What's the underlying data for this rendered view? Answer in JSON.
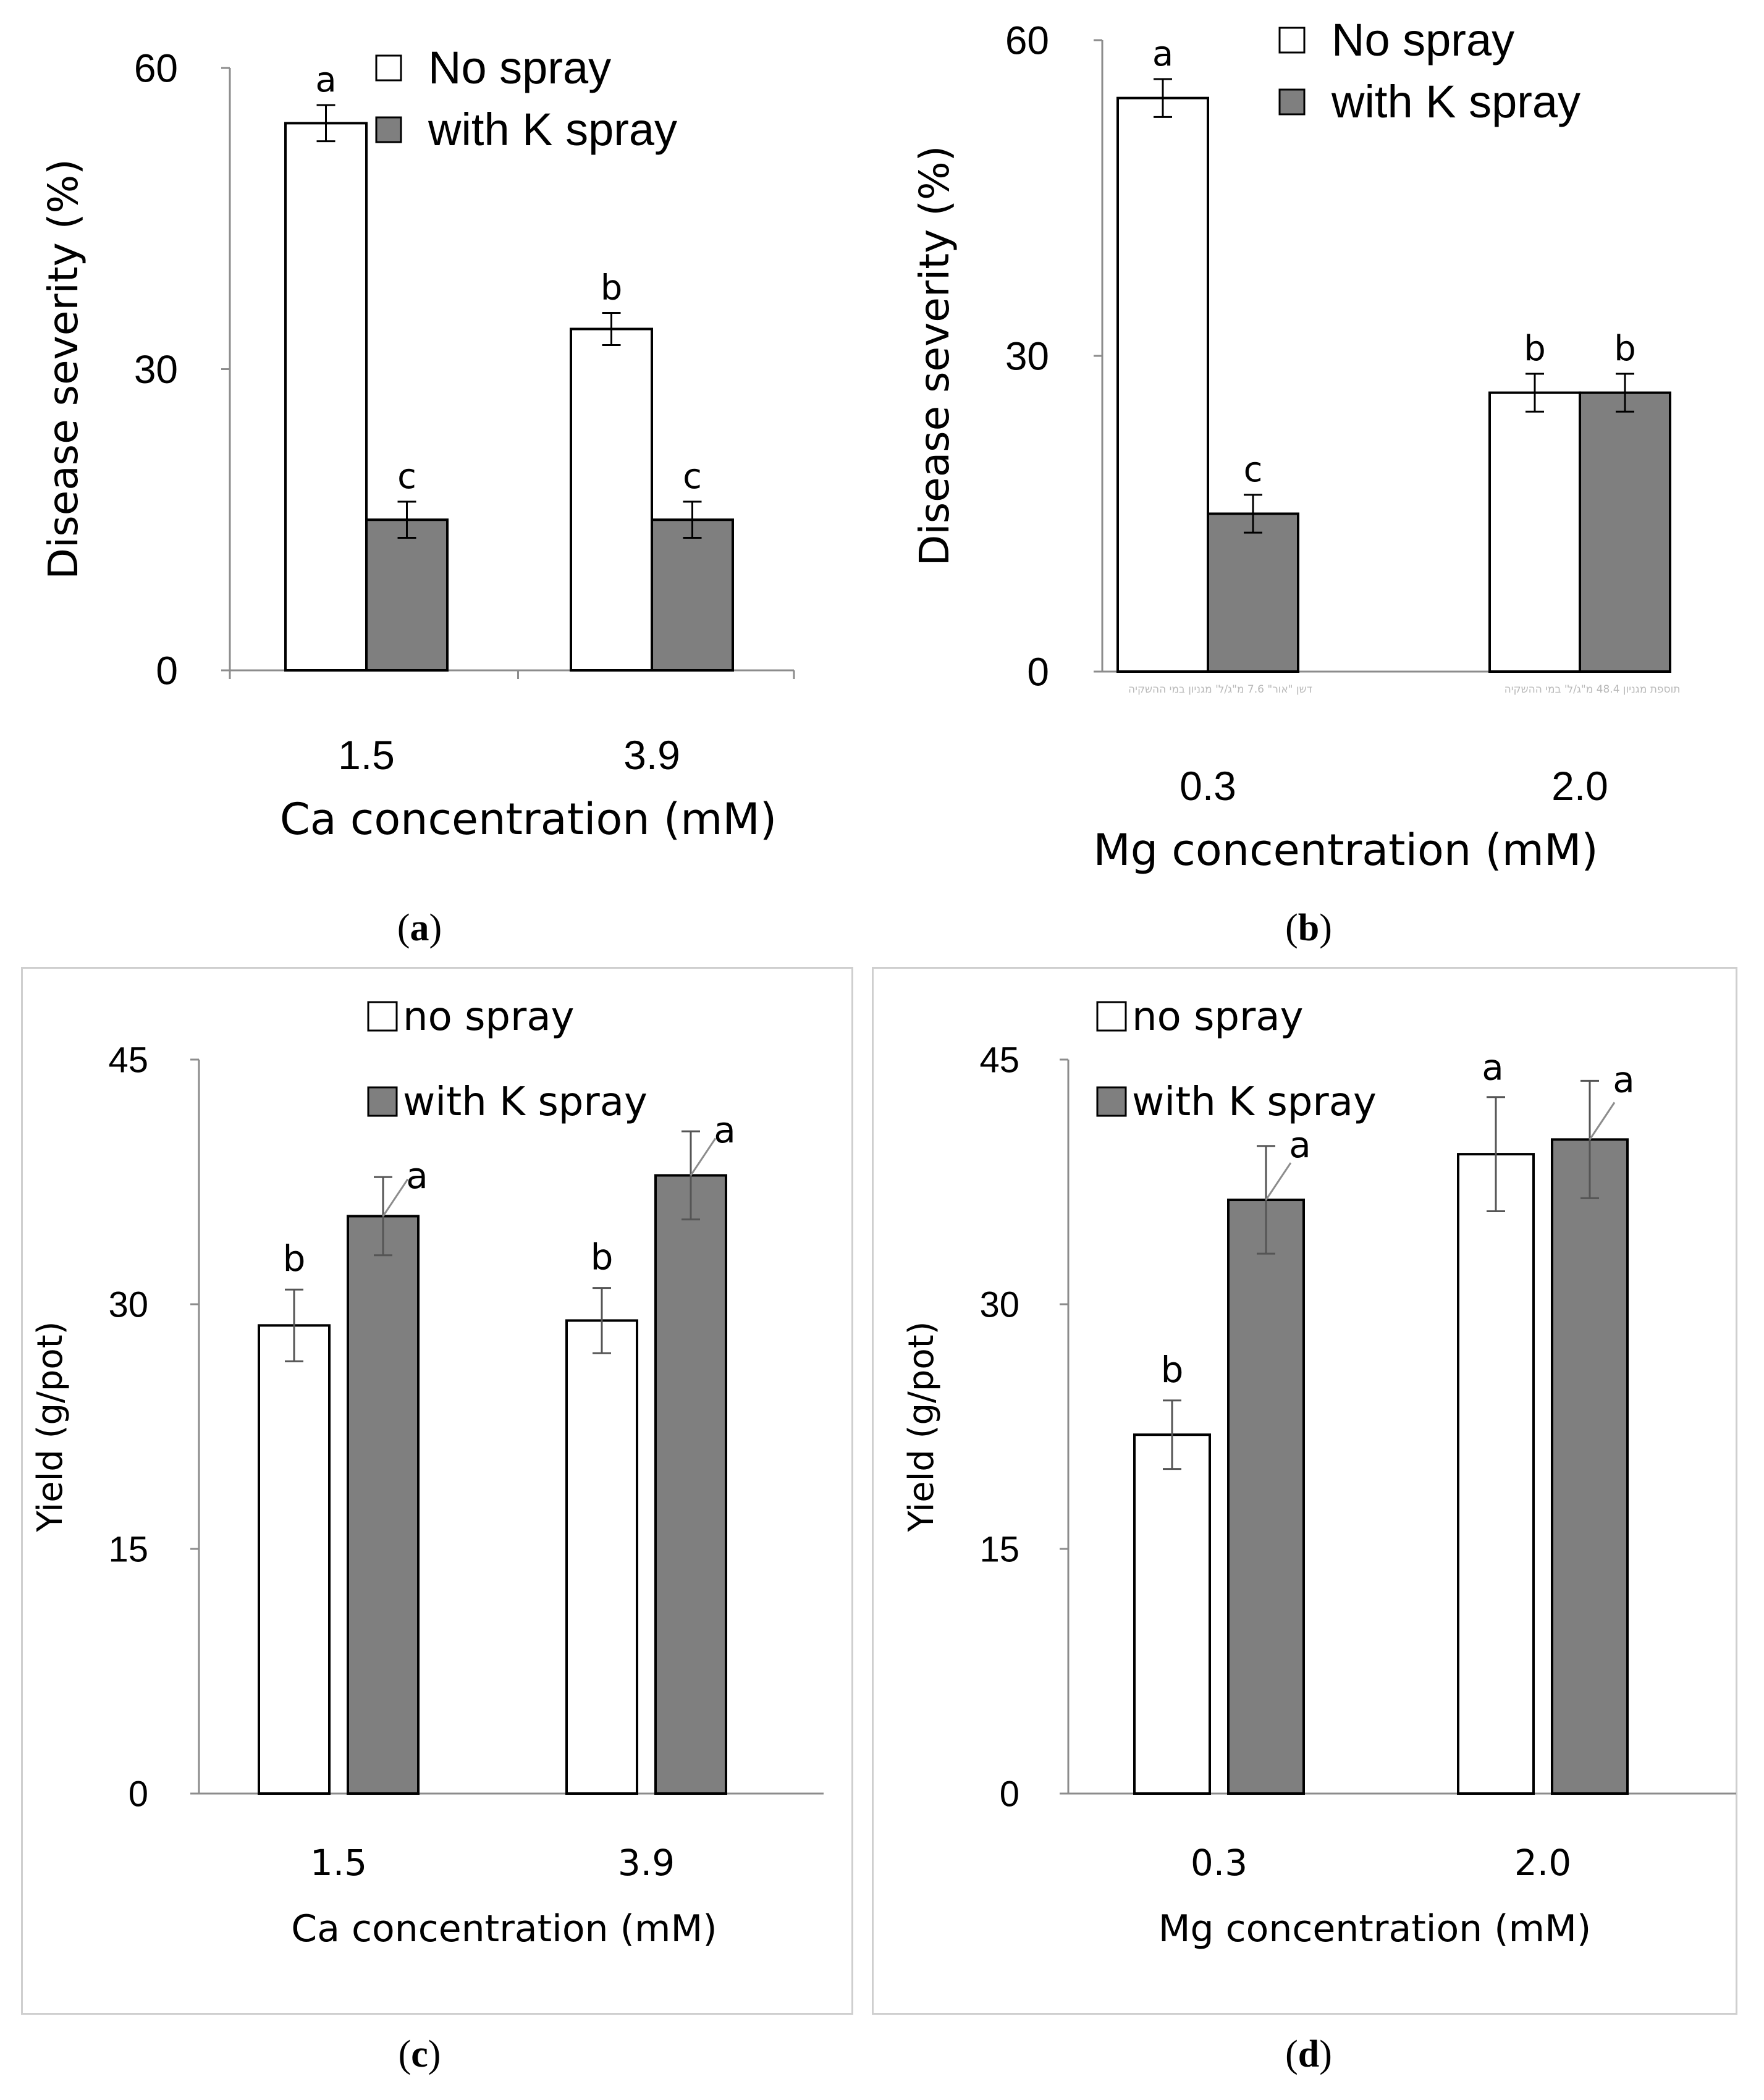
{
  "chart_data": [
    {
      "panel": "a",
      "type": "bar",
      "categories": [
        "1.5",
        "3.9"
      ],
      "series": [
        {
          "name": "No spray",
          "color": "#ffffff",
          "values": [
            54.5,
            34.0
          ],
          "errors": [
            1.8,
            1.6
          ],
          "letters": [
            "a",
            "b"
          ]
        },
        {
          "name": "with K spray",
          "color": "#7f7f7f",
          "values": [
            15.0,
            15.0
          ],
          "errors": [
            1.8,
            1.8
          ],
          "letters": [
            "c",
            "c"
          ]
        }
      ],
      "xlabel": "Ca concentration (mM)",
      "ylabel": "Disease severity (%)",
      "ylim": [
        0,
        60
      ],
      "yticks": [
        "0",
        "30",
        "60"
      ],
      "legend": "top-right",
      "caption": "a"
    },
    {
      "panel": "b",
      "type": "bar",
      "categories": [
        "0.3",
        "2.0"
      ],
      "series": [
        {
          "name": "No spray",
          "color": "#ffffff",
          "values": [
            54.5,
            26.5
          ],
          "errors": [
            1.8,
            1.8
          ],
          "letters": [
            "a",
            "b"
          ]
        },
        {
          "name": "with K spray",
          "color": "#7f7f7f",
          "values": [
            15.0,
            26.5
          ],
          "errors": [
            1.8,
            1.8
          ],
          "letters": [
            "c",
            "b"
          ]
        }
      ],
      "category_notes": [
        "דשן \"אור\" 7.6 מ\"ג/ל' מגניון במי ההשקיה",
        "תוספת מגניון 48.4 מ\"ג/ל' במי ההשקיה"
      ],
      "xlabel": "Mg concentration (mM)",
      "ylabel": "Disease severity (%)",
      "ylim": [
        0,
        60
      ],
      "yticks": [
        "0",
        "30",
        "60"
      ],
      "legend": "top-right",
      "caption": "b"
    },
    {
      "panel": "c",
      "type": "bar",
      "categories": [
        "1.5",
        "3.9"
      ],
      "series": [
        {
          "name": "no spray",
          "color": "#ffffff",
          "values": [
            28.7,
            29.0
          ],
          "errors": [
            2.2,
            2.0
          ],
          "letters": [
            "b",
            "b"
          ]
        },
        {
          "name": "with K spray",
          "color": "#7f7f7f",
          "values": [
            35.4,
            37.9
          ],
          "errors": [
            2.4,
            2.7
          ],
          "letters": [
            "a",
            "a"
          ]
        }
      ],
      "xlabel": "Ca concentration (mM)",
      "ylabel": "Yield (g/pot)",
      "ylim": [
        0,
        45
      ],
      "yticks": [
        "0",
        "15",
        "30",
        "45"
      ],
      "legend": "top",
      "caption": "c"
    },
    {
      "panel": "d",
      "type": "bar",
      "categories": [
        "0.3",
        "2.0"
      ],
      "series": [
        {
          "name": "no spray",
          "color": "#ffffff",
          "values": [
            22.0,
            39.2
          ],
          "errors": [
            2.1,
            3.5
          ],
          "letters": [
            "b",
            "a"
          ]
        },
        {
          "name": "with K spray",
          "color": "#7f7f7f",
          "values": [
            36.4,
            40.1
          ],
          "errors": [
            3.3,
            3.6
          ],
          "letters": [
            "a",
            "a"
          ]
        }
      ],
      "xlabel": "Mg concentration (mM)",
      "ylabel": "Yield (g/pot)",
      "ylim": [
        0,
        45
      ],
      "yticks": [
        "0",
        "15",
        "30",
        "45"
      ],
      "legend": "top-left",
      "caption": "d"
    }
  ]
}
